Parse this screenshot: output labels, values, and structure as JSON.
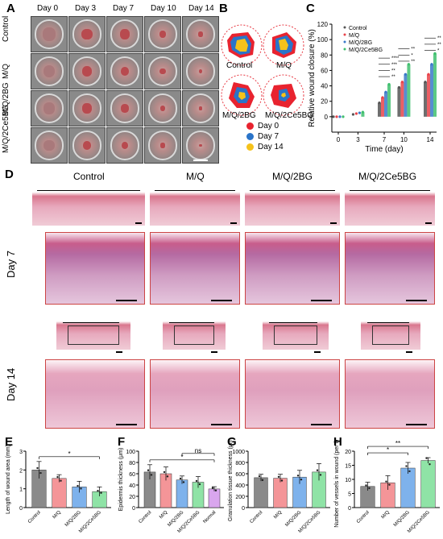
{
  "panels": {
    "A": {
      "label": "A",
      "days": [
        "Day 0",
        "Day 3",
        "Day 7",
        "Day 10",
        "Day 14"
      ],
      "groups": [
        "Control",
        "M/Q",
        "M/Q/2BG",
        "M/Q/2Ce5BG"
      ]
    },
    "B": {
      "label": "B",
      "groups": [
        "Control",
        "M/Q",
        "M/Q/2BG",
        "M/Q/2Ce5BG"
      ],
      "legend": [
        {
          "label": "Day 0",
          "color": "#e8232f"
        },
        {
          "label": "Day 7",
          "color": "#2a74c9"
        },
        {
          "label": "Day 14",
          "color": "#f5c21b"
        }
      ]
    },
    "C": {
      "label": "C"
    },
    "D": {
      "label": "D",
      "groups": [
        "Control",
        "M/Q",
        "M/Q/2BG",
        "M/Q/2Ce5BG"
      ],
      "rows": [
        "Day 7",
        "Day 14"
      ]
    },
    "E": {
      "label": "E"
    },
    "F": {
      "label": "F"
    },
    "G": {
      "label": "G"
    },
    "H": {
      "label": "H"
    }
  },
  "chart_data": [
    {
      "id": "C",
      "type": "line",
      "x": [
        0,
        3,
        7,
        10,
        14
      ],
      "xticks": [
        "0",
        "3",
        "7",
        "10",
        "14"
      ],
      "xlabel": "Time (day)",
      "ylabel": "Relative wound closure (%)",
      "ylim": [
        -20,
        120
      ],
      "yticks": [
        0,
        20,
        40,
        60,
        80,
        100,
        120
      ],
      "series": [
        {
          "name": "Control",
          "color": "#555555",
          "values": [
            0,
            3,
            18,
            38,
            45
          ]
        },
        {
          "name": "M/Q",
          "color": "#e8434a",
          "values": [
            0,
            4,
            25,
            45,
            55
          ]
        },
        {
          "name": "M/Q/2BG",
          "color": "#3a79c8",
          "values": [
            0,
            5,
            32,
            55,
            68
          ]
        },
        {
          "name": "M/Q/2Ce5BG",
          "color": "#3fbf6e",
          "values": [
            0,
            6,
            42,
            68,
            82
          ]
        }
      ],
      "significance": [
        "**",
        "**",
        "***",
        "****",
        "**",
        "*",
        "**",
        "*",
        "**",
        "**"
      ]
    },
    {
      "id": "E",
      "type": "bar",
      "categories": [
        "Control",
        "M/Q",
        "M/Q/2BG",
        "M/Q/2Ce5BG"
      ],
      "values": [
        2.0,
        1.55,
        1.1,
        0.85
      ],
      "errors": [
        0.45,
        0.2,
        0.3,
        0.25
      ],
      "colors": [
        "#8a8a8a",
        "#f49598",
        "#7eb2ec",
        "#8fe3a6"
      ],
      "ylabel": "Length of wound area (mm)",
      "ylim": [
        0,
        3
      ],
      "yticks": [
        0,
        1,
        2,
        3
      ],
      "significance": [
        {
          "from": 0,
          "to": 3,
          "label": "*"
        }
      ]
    },
    {
      "id": "F",
      "type": "bar",
      "categories": [
        "Control",
        "M/Q",
        "M/Q/2BG",
        "M/Q/2Ce5BG",
        "Normal"
      ],
      "values": [
        63,
        60,
        49,
        45,
        33
      ],
      "errors": [
        13,
        12,
        7,
        10,
        4
      ],
      "colors": [
        "#8a8a8a",
        "#f49598",
        "#7eb2ec",
        "#8fe3a6",
        "#d9a6ee"
      ],
      "ylabel": "Epidermis thickness (μm)",
      "ylim": [
        0,
        100
      ],
      "yticks": [
        0,
        20,
        40,
        60,
        80,
        100
      ],
      "significance": [
        {
          "from": 0,
          "to": 4,
          "label": "*"
        },
        {
          "from": 2,
          "to": 4,
          "label": "ns"
        }
      ]
    },
    {
      "id": "G",
      "type": "bar",
      "categories": [
        "Control",
        "M/Q",
        "M/Q/2BG",
        "M/Q/2Ce5BG"
      ],
      "values": [
        530,
        520,
        540,
        630
      ],
      "errors": [
        60,
        70,
        120,
        150
      ],
      "colors": [
        "#8a8a8a",
        "#f49598",
        "#7eb2ec",
        "#8fe3a6"
      ],
      "ylabel": "Granulation tissue thickness (μm)",
      "ylim": [
        0,
        1000
      ],
      "yticks": [
        0,
        200,
        400,
        600,
        800,
        1000
      ]
    },
    {
      "id": "H",
      "type": "bar",
      "categories": [
        "Control",
        "M/Q",
        "M/Q/2BG",
        "M/Q/2Ce5BG"
      ],
      "values": [
        7.5,
        8.8,
        14.0,
        16.7
      ],
      "errors": [
        1.5,
        2.5,
        2.0,
        1.0
      ],
      "colors": [
        "#8a8a8a",
        "#f49598",
        "#7eb2ec",
        "#8fe3a6"
      ],
      "ylabel": "Number of vessels in wound (per field)",
      "ylim": [
        0,
        20
      ],
      "yticks": [
        0,
        5,
        10,
        15,
        20
      ],
      "significance": [
        {
          "from": 0,
          "to": 2,
          "label": "*"
        },
        {
          "from": 0,
          "to": 3,
          "label": "**"
        }
      ]
    }
  ]
}
